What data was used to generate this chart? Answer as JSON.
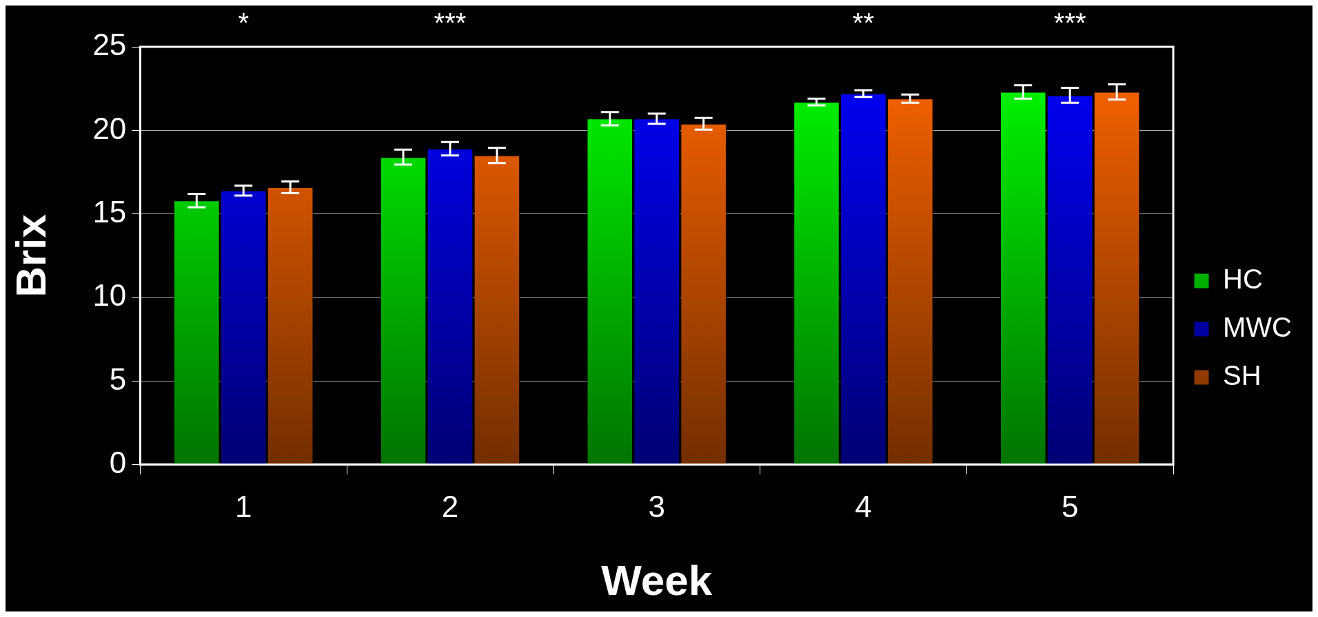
{
  "chart_data": {
    "type": "bar",
    "xlabel": "Week",
    "ylabel": "Brix",
    "categories": [
      "1",
      "2",
      "3",
      "4",
      "5"
    ],
    "series": [
      {
        "name": "HC",
        "color": "#00ff00",
        "values": [
          15.8,
          18.4,
          20.7,
          21.7,
          22.3
        ],
        "errors": [
          0.4,
          0.45,
          0.4,
          0.2,
          0.4
        ]
      },
      {
        "name": "MWC",
        "color": "#0000ff",
        "values": [
          16.4,
          18.9,
          20.7,
          22.2,
          22.1
        ],
        "errors": [
          0.3,
          0.4,
          0.3,
          0.2,
          0.45
        ]
      },
      {
        "name": "SH",
        "color": "#ff6600",
        "values": [
          16.6,
          18.5,
          20.4,
          21.9,
          22.3
        ],
        "errors": [
          0.35,
          0.45,
          0.35,
          0.25,
          0.45
        ]
      }
    ],
    "ylim": [
      0,
      25
    ],
    "yticks": [
      0,
      5,
      10,
      15,
      20,
      25
    ],
    "grid": "y",
    "legend": "right",
    "annotations": [
      "*",
      "***",
      "**",
      "***"
    ]
  }
}
